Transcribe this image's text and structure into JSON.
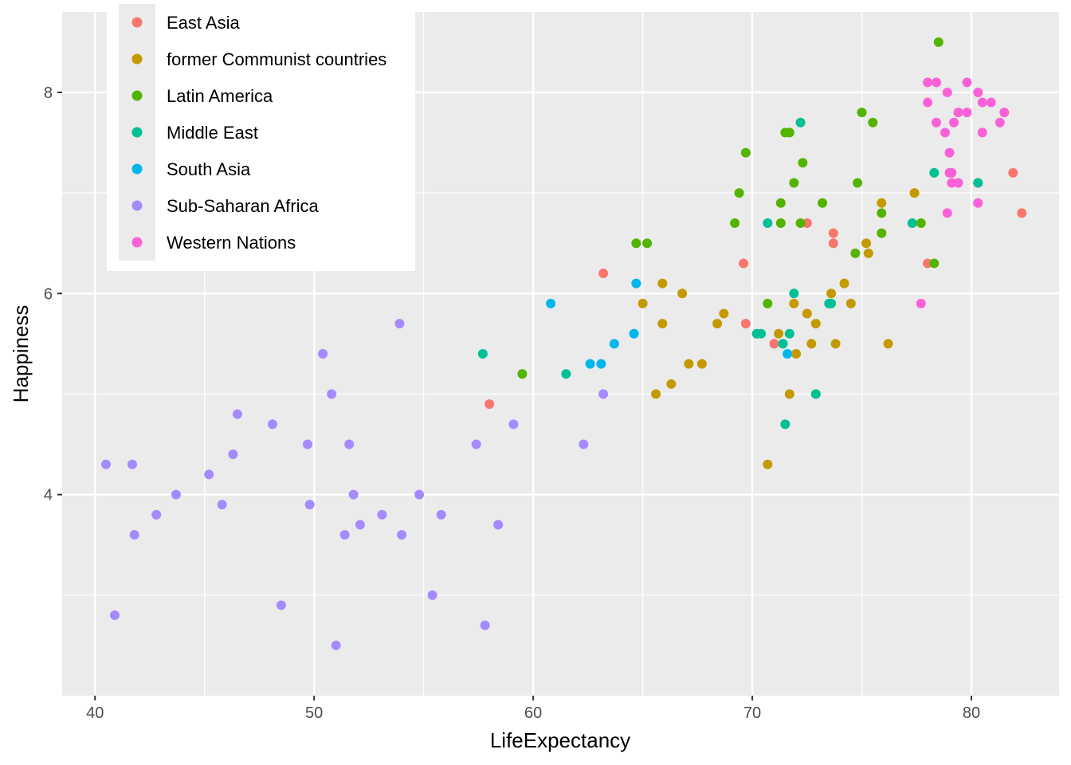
{
  "chart_data": {
    "type": "scatter",
    "title": "",
    "xlabel": "LifeExpectancy",
    "ylabel": "Happiness",
    "xlim": [
      38.5,
      84
    ],
    "ylim": [
      2.0,
      8.8
    ],
    "x_ticks": [
      40,
      50,
      60,
      70,
      80
    ],
    "y_ticks": [
      4,
      6,
      8
    ],
    "grid": true,
    "legend_position": "top-left",
    "series": [
      {
        "name": "East Asia",
        "color": "#F8766D",
        "points": [
          [
            58.0,
            4.9
          ],
          [
            63.2,
            6.2
          ],
          [
            69.6,
            6.3
          ],
          [
            69.7,
            5.7
          ],
          [
            71.0,
            5.5
          ],
          [
            72.5,
            6.7
          ],
          [
            73.7,
            6.6
          ],
          [
            73.7,
            6.5
          ],
          [
            78.0,
            6.3
          ],
          [
            80.3,
            7.1
          ],
          [
            81.9,
            7.2
          ],
          [
            82.3,
            6.8
          ]
        ]
      },
      {
        "name": "former Communist countries",
        "color": "#C49A00",
        "points": [
          [
            65.0,
            5.9
          ],
          [
            65.6,
            5.0
          ],
          [
            65.9,
            6.1
          ],
          [
            65.9,
            5.7
          ],
          [
            66.3,
            5.1
          ],
          [
            66.8,
            6.0
          ],
          [
            67.1,
            5.3
          ],
          [
            67.7,
            5.3
          ],
          [
            68.4,
            5.7
          ],
          [
            68.7,
            5.8
          ],
          [
            70.7,
            4.3
          ],
          [
            71.2,
            5.6
          ],
          [
            71.7,
            5.0
          ],
          [
            71.9,
            5.9
          ],
          [
            72.0,
            5.4
          ],
          [
            72.5,
            5.8
          ],
          [
            72.7,
            5.5
          ],
          [
            72.9,
            5.7
          ],
          [
            73.6,
            6.0
          ],
          [
            73.8,
            5.5
          ],
          [
            74.2,
            6.1
          ],
          [
            74.5,
            5.9
          ],
          [
            75.2,
            6.5
          ],
          [
            75.3,
            6.4
          ],
          [
            75.9,
            6.9
          ],
          [
            76.2,
            5.5
          ],
          [
            77.4,
            7.0
          ]
        ]
      },
      {
        "name": "Latin America",
        "color": "#53B400",
        "points": [
          [
            59.5,
            5.2
          ],
          [
            64.7,
            6.5
          ],
          [
            65.2,
            6.5
          ],
          [
            69.2,
            6.7
          ],
          [
            69.4,
            7.0
          ],
          [
            69.7,
            7.4
          ],
          [
            70.7,
            5.9
          ],
          [
            71.3,
            6.9
          ],
          [
            71.3,
            6.7
          ],
          [
            71.5,
            7.6
          ],
          [
            71.7,
            7.6
          ],
          [
            71.9,
            7.1
          ],
          [
            72.2,
            6.7
          ],
          [
            72.3,
            7.3
          ],
          [
            73.2,
            6.9
          ],
          [
            74.7,
            6.4
          ],
          [
            74.8,
            7.1
          ],
          [
            75.0,
            7.8
          ],
          [
            75.5,
            7.7
          ],
          [
            75.9,
            6.8
          ],
          [
            75.9,
            6.6
          ],
          [
            77.7,
            6.7
          ],
          [
            78.3,
            6.3
          ],
          [
            78.5,
            8.5
          ]
        ]
      },
      {
        "name": "Middle East",
        "color": "#00C094",
        "points": [
          [
            57.7,
            5.4
          ],
          [
            61.5,
            5.2
          ],
          [
            70.2,
            5.6
          ],
          [
            70.4,
            5.6
          ],
          [
            70.7,
            6.7
          ],
          [
            71.4,
            5.5
          ],
          [
            71.5,
            4.7
          ],
          [
            71.7,
            5.6
          ],
          [
            71.9,
            6.0
          ],
          [
            72.2,
            7.7
          ],
          [
            72.9,
            5.0
          ],
          [
            73.5,
            5.9
          ],
          [
            73.6,
            5.9
          ],
          [
            77.3,
            6.7
          ],
          [
            78.3,
            7.2
          ],
          [
            80.3,
            7.1
          ]
        ]
      },
      {
        "name": "South Asia",
        "color": "#00B6EB",
        "points": [
          [
            60.8,
            5.9
          ],
          [
            62.6,
            5.3
          ],
          [
            63.1,
            5.3
          ],
          [
            63.7,
            5.5
          ],
          [
            64.6,
            5.6
          ],
          [
            64.7,
            6.1
          ],
          [
            71.6,
            5.4
          ]
        ]
      },
      {
        "name": "Sub-Saharan Africa",
        "color": "#A58AFF",
        "points": [
          [
            40.5,
            4.3
          ],
          [
            40.9,
            2.8
          ],
          [
            41.7,
            4.3
          ],
          [
            41.8,
            3.6
          ],
          [
            42.8,
            3.8
          ],
          [
            43.7,
            4.0
          ],
          [
            45.2,
            4.2
          ],
          [
            45.8,
            3.9
          ],
          [
            46.3,
            4.4
          ],
          [
            46.5,
            4.8
          ],
          [
            48.1,
            4.7
          ],
          [
            48.5,
            2.9
          ],
          [
            49.7,
            4.5
          ],
          [
            49.8,
            3.9
          ],
          [
            50.4,
            5.4
          ],
          [
            50.8,
            5.0
          ],
          [
            51.0,
            2.5
          ],
          [
            51.4,
            3.6
          ],
          [
            51.6,
            4.5
          ],
          [
            51.8,
            4.0
          ],
          [
            52.1,
            3.7
          ],
          [
            53.1,
            3.8
          ],
          [
            53.9,
            5.7
          ],
          [
            54.0,
            3.6
          ],
          [
            54.8,
            4.0
          ],
          [
            55.4,
            3.0
          ],
          [
            55.8,
            3.8
          ],
          [
            57.4,
            4.5
          ],
          [
            57.8,
            2.7
          ],
          [
            58.4,
            3.7
          ],
          [
            59.1,
            4.7
          ],
          [
            62.3,
            4.5
          ],
          [
            63.2,
            5.0
          ]
        ]
      },
      {
        "name": "Western Nations",
        "color": "#FB61D7",
        "points": [
          [
            77.7,
            5.9
          ],
          [
            78.0,
            8.1
          ],
          [
            78.0,
            7.9
          ],
          [
            78.4,
            8.1
          ],
          [
            78.4,
            7.7
          ],
          [
            78.8,
            7.6
          ],
          [
            78.9,
            8.0
          ],
          [
            78.9,
            6.8
          ],
          [
            79.0,
            7.4
          ],
          [
            79.0,
            7.2
          ],
          [
            79.1,
            7.2
          ],
          [
            79.1,
            7.1
          ],
          [
            79.2,
            7.7
          ],
          [
            79.4,
            7.8
          ],
          [
            79.4,
            7.1
          ],
          [
            79.8,
            8.1
          ],
          [
            79.8,
            7.8
          ],
          [
            80.3,
            8.0
          ],
          [
            80.3,
            6.9
          ],
          [
            80.5,
            7.9
          ],
          [
            80.5,
            7.6
          ],
          [
            80.9,
            7.9
          ],
          [
            81.3,
            7.7
          ],
          [
            81.5,
            7.8
          ]
        ]
      }
    ]
  }
}
